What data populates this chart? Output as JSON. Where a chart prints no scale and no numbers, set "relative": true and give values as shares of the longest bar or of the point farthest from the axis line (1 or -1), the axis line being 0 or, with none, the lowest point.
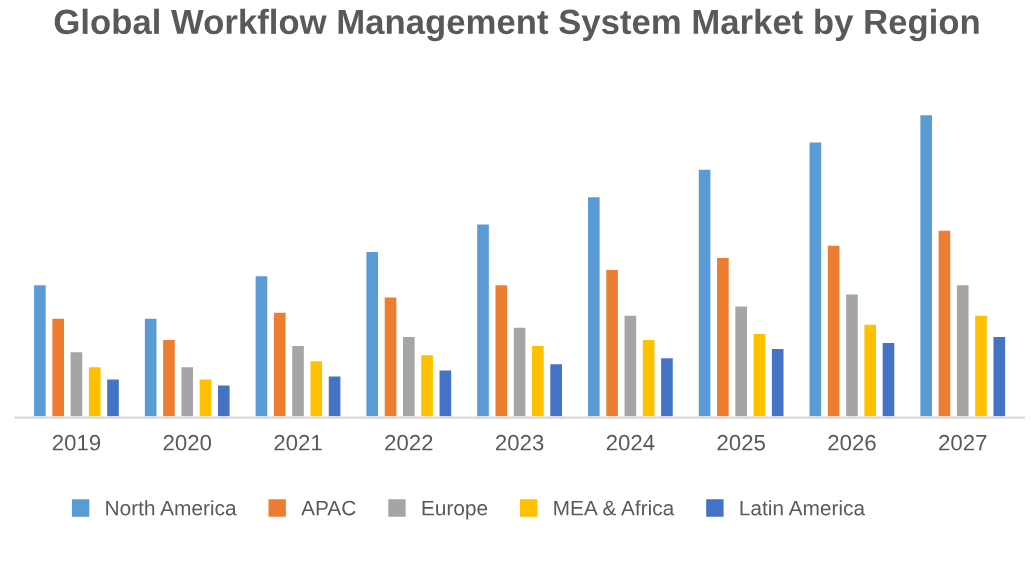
{
  "chart_data": {
    "type": "bar",
    "title": "Global Workflow Management System Market by Region",
    "relative": true,
    "categories": [
      "2019",
      "2020",
      "2021",
      "2022",
      "2023",
      "2024",
      "2025",
      "2026",
      "2027"
    ],
    "series": [
      {
        "name": "North America",
        "color": "#5b9bd5",
        "values": [
          0.44,
          0.33,
          0.47,
          0.55,
          0.64,
          0.73,
          0.82,
          0.91,
          1
        ]
      },
      {
        "name": "APAC",
        "color": "#ed7d31",
        "values": [
          0.33,
          0.26,
          0.35,
          0.4,
          0.44,
          0.49,
          0.53,
          0.57,
          0.62
        ]
      },
      {
        "name": "Europe",
        "color": "#a5a5a5",
        "values": [
          0.22,
          0.17,
          0.24,
          0.27,
          0.3,
          0.34,
          0.37,
          0.41,
          0.44
        ]
      },
      {
        "name": "MEA & Africa",
        "color": "#ffc000",
        "values": [
          0.17,
          0.13,
          0.19,
          0.21,
          0.24,
          0.26,
          0.28,
          0.31,
          0.34
        ]
      },
      {
        "name": "Latin America",
        "color": "#4472c4",
        "values": [
          0.13,
          0.11,
          0.14,
          0.16,
          0.18,
          0.2,
          0.23,
          0.25,
          0.27
        ]
      }
    ],
    "legend": "bottom",
    "grid": false
  }
}
